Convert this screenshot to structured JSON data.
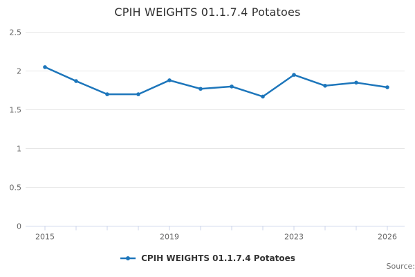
{
  "title": "CPIH WEIGHTS 01.1.7.4 Potatoes",
  "legend": {
    "label": "CPIH WEIGHTS 01.1.7.4 Potatoes"
  },
  "footer": {
    "source_label": "Source:"
  },
  "colors": {
    "line": "#1d76bb",
    "grid": "#e6e6e6",
    "axis": "#ccd6eb",
    "tick_label": "#666666",
    "title_text": "#2f2f2f",
    "legend_text": "#333333",
    "source_text": "#707070"
  },
  "chart_data": {
    "type": "line",
    "title": "CPIH WEIGHTS 01.1.7.4 Potatoes",
    "xlabel": "",
    "ylabel": "",
    "x": [
      2015,
      2016,
      2017,
      2018,
      2019,
      2020,
      2021,
      2022,
      2023,
      2024,
      2025,
      2026
    ],
    "series": [
      {
        "name": "CPIH WEIGHTS 01.1.7.4 Potatoes",
        "values": [
          2.05,
          1.87,
          1.7,
          1.7,
          1.88,
          1.77,
          1.8,
          1.67,
          1.95,
          1.81,
          1.85,
          1.79
        ]
      }
    ],
    "ylim": [
      0,
      2.5
    ],
    "y_ticks": [
      0,
      0.5,
      1,
      1.5,
      2,
      2.5
    ],
    "y_tick_labels": [
      "0",
      "0.5",
      "1",
      "1.5",
      "2",
      "2.5"
    ],
    "x_ticks": [
      2015,
      2016,
      2017,
      2018,
      2019,
      2020,
      2021,
      2022,
      2023,
      2024,
      2025,
      2026
    ],
    "x_labeled_ticks": [
      2015,
      2019,
      2023,
      2026
    ],
    "grid": "horizontal",
    "legend_position": "bottom"
  }
}
